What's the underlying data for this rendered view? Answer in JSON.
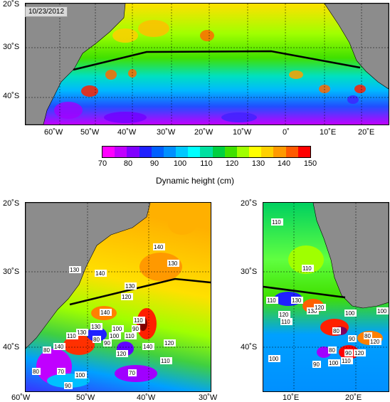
{
  "top_map": {
    "date": "10/23/2012",
    "lon_ticks": [
      "60˚W",
      "50˚W",
      "40˚W",
      "30˚W",
      "20˚W",
      "10˚W",
      "0˚",
      "10˚E",
      "20˚E"
    ],
    "lat_ticks": [
      "20˚S",
      "30˚S",
      "40˚S"
    ]
  },
  "colorbar": {
    "ticks": [
      "70",
      "80",
      "90",
      "100",
      "110",
      "120",
      "130",
      "140",
      "150"
    ],
    "title": "Dynamic height (cm)",
    "colors": [
      "#ff00ff",
      "#c000ff",
      "#8000ff",
      "#2020ff",
      "#0060ff",
      "#0090ff",
      "#00c8ff",
      "#00ffff",
      "#00e0a0",
      "#00d040",
      "#40e000",
      "#a0ff00",
      "#ffff00",
      "#ffd000",
      "#ff9900",
      "#ff5a00",
      "#ff0000"
    ]
  },
  "bottom_left_map": {
    "lon_ticks": [
      "60˚W",
      "50˚W",
      "40˚W",
      "30˚W"
    ],
    "lat_ticks": [
      "20˚S",
      "30˚S",
      "40˚S"
    ],
    "contour_labels": [
      "130",
      "140",
      "130",
      "140",
      "130",
      "120",
      "130",
      "140",
      "130",
      "110",
      "140",
      "110",
      "90",
      "100",
      "120",
      "90",
      "80",
      "100",
      "110",
      "140",
      "120",
      "110",
      "80",
      "70",
      "100",
      "80",
      "90",
      "70"
    ]
  },
  "bottom_right_map": {
    "lon_ticks": [
      "10˚E",
      "20˚E"
    ],
    "lat_ticks": [
      "20˚S",
      "30˚S",
      "40˚S"
    ],
    "contour_labels": [
      "110",
      "110",
      "130",
      "130",
      "110",
      "120",
      "110",
      "120",
      "100",
      "100",
      "100",
      "80",
      "80",
      "90",
      "90",
      "120",
      "110",
      "100",
      "90",
      "120",
      "80"
    ]
  },
  "colors": {
    "land": "#8c8c8c",
    "cold": "#2a3cff",
    "warm": "#ffd000"
  }
}
